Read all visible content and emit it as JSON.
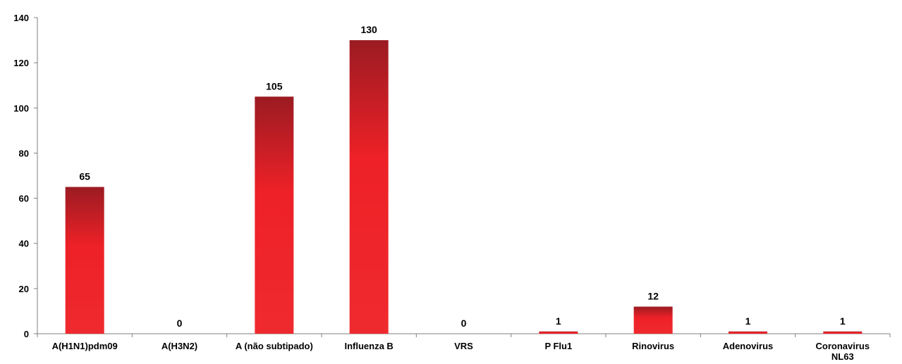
{
  "chart_data": {
    "type": "bar",
    "categories": [
      [
        "A(H1N1)pdm09"
      ],
      [
        "A(H3N2)"
      ],
      [
        "A (não subtipado)"
      ],
      [
        "Influenza B"
      ],
      [
        "VRS"
      ],
      [
        "P Flu1"
      ],
      [
        "Rinovirus"
      ],
      [
        "Adenovirus"
      ],
      [
        "Coronavirus",
        "NL63"
      ]
    ],
    "values": [
      65,
      0,
      105,
      130,
      0,
      1,
      12,
      1,
      1
    ],
    "ylim": [
      0,
      140
    ],
    "yticks": [
      0,
      20,
      40,
      60,
      80,
      100,
      120,
      140
    ],
    "grid": false,
    "legend": "none",
    "colors": {
      "bar_top": "#9b1b22",
      "bar_bottom": "#ef2a2e",
      "axis": "#7f7f7f"
    }
  }
}
